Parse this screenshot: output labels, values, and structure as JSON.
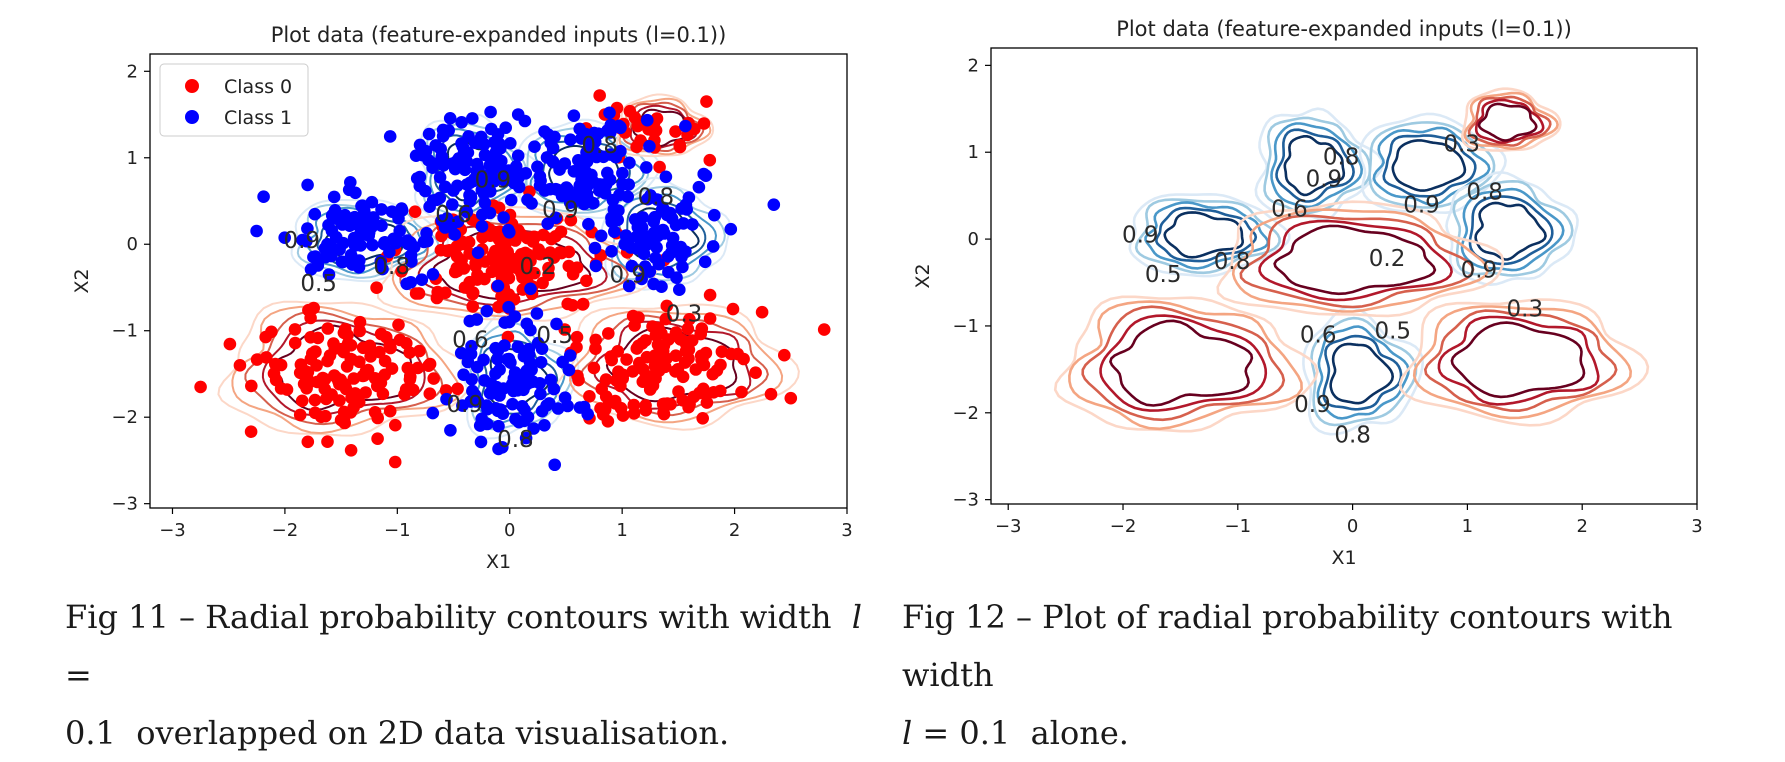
{
  "chart_data": [
    {
      "type": "scatter",
      "title": "Plot data (feature-expanded inputs (l=0.1))",
      "xlabel": "X1",
      "ylabel": "X2",
      "xlim": [
        -3.2,
        3.0
      ],
      "ylim": [
        -3.05,
        2.2
      ],
      "xticks": [
        -3,
        -2,
        -1,
        0,
        1,
        2,
        3
      ],
      "xtick_labels": [
        "−3",
        "−2",
        "−1",
        "0",
        "1",
        "2",
        "3"
      ],
      "yticks": [
        -3,
        -2,
        -1,
        0,
        1,
        2
      ],
      "ytick_labels": [
        "−3",
        "−2",
        "−1",
        "0",
        "1",
        "2"
      ],
      "grid": false,
      "legend": "top-left",
      "series": [
        {
          "name": "Class 0",
          "color": "#ff0000",
          "clusters": [
            {
              "center": [
                -1.5,
                -1.5
              ],
              "spread": [
                0.42,
                0.38
              ],
              "n": 130
            },
            {
              "center": [
                1.4,
                -1.4
              ],
              "spread": [
                0.4,
                0.38
              ],
              "n": 130
            },
            {
              "center": [
                0.0,
                -0.2
              ],
              "spread": [
                0.45,
                0.35
              ],
              "n": 150
            },
            {
              "center": [
                1.3,
                1.3
              ],
              "spread": [
                0.3,
                0.22
              ],
              "n": 30
            }
          ],
          "outliers": [
            [
              -2.75,
              -1.65
            ],
            [
              2.5,
              -1.78
            ],
            [
              -2.4,
              -1.4
            ],
            [
              1.75,
              1.65
            ],
            [
              0.8,
              1.72
            ]
          ]
        },
        {
          "name": "Class 1",
          "color": "#0000ff",
          "clusters": [
            {
              "center": [
                -1.3,
                0.1
              ],
              "spread": [
                0.38,
                0.25
              ],
              "n": 100
            },
            {
              "center": [
                -0.4,
                0.85
              ],
              "spread": [
                0.3,
                0.35
              ],
              "n": 100
            },
            {
              "center": [
                0.6,
                0.9
              ],
              "spread": [
                0.33,
                0.3
              ],
              "n": 100
            },
            {
              "center": [
                1.3,
                0.1
              ],
              "spread": [
                0.28,
                0.3
              ],
              "n": 80
            },
            {
              "center": [
                0.0,
                -1.6
              ],
              "spread": [
                0.3,
                0.38
              ],
              "n": 110
            }
          ],
          "outliers": [
            [
              0.4,
              -2.55
            ]
          ]
        }
      ],
      "contour_labels": [
        {
          "text": "0.5",
          "x": -1.7,
          "y": -0.45
        },
        {
          "text": "0.8",
          "x": -1.05,
          "y": -0.25
        },
        {
          "text": "0.9",
          "x": -1.85,
          "y": 0.05
        },
        {
          "text": "0.6",
          "x": -0.5,
          "y": 0.35
        },
        {
          "text": "0.9",
          "x": -0.15,
          "y": 0.75
        },
        {
          "text": "0.9",
          "x": 0.45,
          "y": 0.4
        },
        {
          "text": "0.8",
          "x": 1.3,
          "y": 0.55
        },
        {
          "text": "0.9",
          "x": 1.05,
          "y": -0.35
        },
        {
          "text": "0.8",
          "x": 0.8,
          "y": 1.15
        },
        {
          "text": "0.2",
          "x": 0.25,
          "y": -0.25
        },
        {
          "text": "0.3",
          "x": 1.55,
          "y": -0.8
        },
        {
          "text": "0.6",
          "x": -0.35,
          "y": -1.1
        },
        {
          "text": "0.5",
          "x": 0.4,
          "y": -1.05
        },
        {
          "text": "0.9",
          "x": -0.4,
          "y": -1.85
        },
        {
          "text": "0.8",
          "x": 0.05,
          "y": -2.25
        }
      ]
    },
    {
      "type": "contour",
      "title": "Plot data (feature-expanded inputs (l=0.1))",
      "xlabel": "X1",
      "ylabel": "X2",
      "xlim": [
        -3.15,
        3.0
      ],
      "ylim": [
        -3.05,
        2.2
      ],
      "xticks": [
        -3,
        -2,
        -1,
        0,
        1,
        2,
        3
      ],
      "xtick_labels": [
        "−3",
        "−2",
        "−1",
        "0",
        "1",
        "2",
        "3"
      ],
      "yticks": [
        -3,
        -2,
        -1,
        0,
        1,
        2
      ],
      "ytick_labels": [
        "−3",
        "−2",
        "−1",
        "0",
        "1",
        "2"
      ],
      "grid": false,
      "colormap": "RdBu",
      "contour_labels": [
        {
          "text": "0.9",
          "x": -1.85,
          "y": 0.05
        },
        {
          "text": "0.5",
          "x": -1.65,
          "y": -0.4
        },
        {
          "text": "0.8",
          "x": -1.05,
          "y": -0.25
        },
        {
          "text": "0.6",
          "x": -0.55,
          "y": 0.35
        },
        {
          "text": "0.9",
          "x": -0.25,
          "y": 0.7
        },
        {
          "text": "0.8",
          "x": -0.1,
          "y": 0.95
        },
        {
          "text": "0.9",
          "x": 0.6,
          "y": 0.4
        },
        {
          "text": "0.8",
          "x": 1.15,
          "y": 0.55
        },
        {
          "text": "0.3",
          "x": 0.95,
          "y": 1.1
        },
        {
          "text": "0.9",
          "x": 1.1,
          "y": -0.35
        },
        {
          "text": "0.2",
          "x": 0.3,
          "y": -0.22
        },
        {
          "text": "0.3",
          "x": 1.5,
          "y": -0.8
        },
        {
          "text": "0.6",
          "x": -0.3,
          "y": -1.1
        },
        {
          "text": "0.5",
          "x": 0.35,
          "y": -1.05
        },
        {
          "text": "0.9",
          "x": -0.35,
          "y": -1.9
        },
        {
          "text": "0.8",
          "x": 0.0,
          "y": -2.25
        }
      ]
    }
  ],
  "captions": {
    "left_line1": "Fig 11 – Radial probability contours with width  𝑙 =",
    "left_line2": "0.1  overlapped on 2D data visualisation.",
    "right_line1": "Fig 12 – Plot of radial probability contours with width",
    "right_line2": "𝑙 = 0.1  alone."
  }
}
